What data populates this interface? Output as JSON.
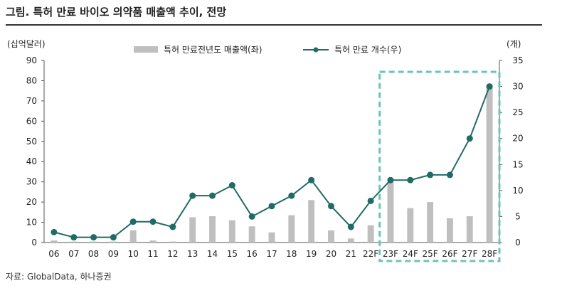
{
  "title": "그림. 특허 만료 바이오 의약품 매출액 추이, 전망",
  "source": "자료: GlobalData, 하나증권",
  "chart_data": {
    "type": "bar+line",
    "categories": [
      "06",
      "07",
      "08",
      "09",
      "10",
      "11",
      "12",
      "13",
      "14",
      "15",
      "16",
      "17",
      "18",
      "19",
      "20",
      "21",
      "22F",
      "23F",
      "24F",
      "25F",
      "26F",
      "27F",
      "28F"
    ],
    "left_axis": {
      "unit_label": "(십억달러)",
      "ylim": [
        0,
        90
      ],
      "ticks": [
        0,
        10,
        20,
        30,
        40,
        50,
        60,
        70,
        80,
        90
      ]
    },
    "right_axis": {
      "unit_label": "(개)",
      "ylim": [
        0,
        35
      ],
      "ticks": [
        0,
        5,
        10,
        15,
        20,
        25,
        30,
        35
      ]
    },
    "series": [
      {
        "name": "특허 만료전년도 매출액(좌)",
        "kind": "bar",
        "axis": "left",
        "color": "#bfbfbf",
        "values": [
          1,
          0.5,
          0.5,
          0.5,
          6,
          1,
          0.5,
          12.5,
          13,
          11,
          8,
          5,
          13.5,
          21,
          6,
          2,
          8.5,
          30,
          17,
          20,
          12,
          13,
          78
        ]
      },
      {
        "name": "특허 만료 개수(우)",
        "kind": "line",
        "axis": "right",
        "color": "#1f6b66",
        "values": [
          2,
          1,
          1,
          1,
          4,
          4,
          3,
          9,
          9,
          11,
          5,
          7,
          9,
          12,
          7,
          3,
          8,
          12,
          12,
          13,
          13,
          20,
          30
        ]
      }
    ],
    "highlight": {
      "from": "23F",
      "to": "28F",
      "style": "dashed box",
      "color": "#6cc3bb"
    },
    "grid": false,
    "legend_position": "top"
  }
}
